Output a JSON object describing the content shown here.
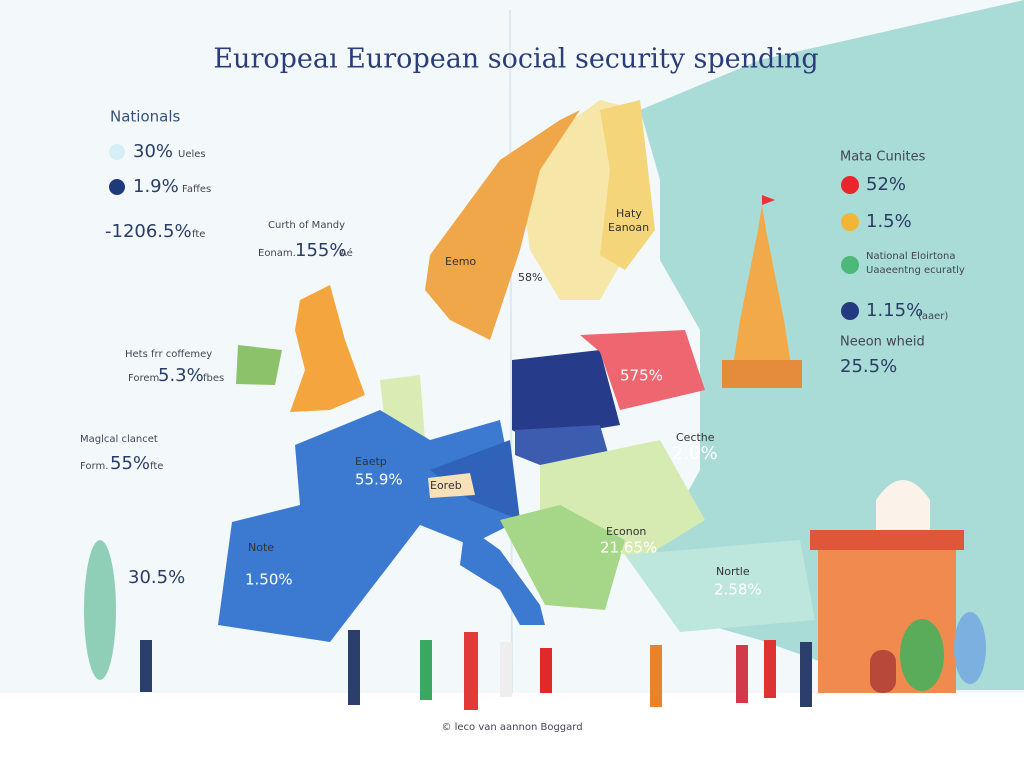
{
  "title": "Europeaı European social security spending",
  "left_legend": {
    "heading": "Nationals",
    "items": [
      {
        "value": "30%",
        "label": "Ueles"
      },
      {
        "value": "1.9%",
        "label": "Faffes"
      },
      {
        "value": "-1206.5%",
        "label": "fte"
      }
    ]
  },
  "left_notes": [
    {
      "heading": "Curth of Mandy",
      "label": "Eonam.",
      "value": "155%",
      "unit": "Aé"
    },
    {
      "heading": "Hets frr coffemey",
      "label": "Forem",
      "value": "5.3%",
      "unit": "fbes"
    },
    {
      "heading": "Maglcal clancet",
      "label": "Form.",
      "value": "55%",
      "unit": "fte"
    }
  ],
  "left_value": "30.5%",
  "map_labels": [
    {
      "text": "Eemo"
    },
    {
      "text": "Haty",
      "sub": "Eanoan"
    },
    {
      "text": "58%"
    },
    {
      "text": "Eaetp",
      "sub": "55.9%"
    },
    {
      "text": "Eoreb"
    },
    {
      "text": "Note",
      "sub": "1.50%"
    },
    {
      "text": "575%"
    },
    {
      "text": "Cecthe",
      "sub": "2.0%"
    },
    {
      "text": "Econon",
      "sub": "21.65%"
    },
    {
      "text": "Nortle",
      "sub": "2.58%"
    }
  ],
  "right_legend": {
    "heading": "Mata Cunites",
    "items": [
      {
        "value": "52%"
      },
      {
        "value": "1.5%"
      },
      {
        "label": "National Eloirtona",
        "sub": "Uaaeentng ecuratly"
      },
      {
        "value": "1.15%",
        "label": "(aaer)"
      }
    ]
  },
  "right_note": {
    "heading": "Neeon wheid",
    "value": "25.5%"
  },
  "footer": "© leco van aannon Boggard"
}
